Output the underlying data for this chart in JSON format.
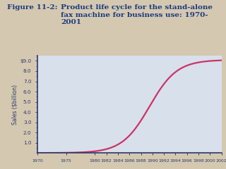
{
  "title_label": "Figure 11-2:",
  "title_text": "   Product life cycle for the stand-alone\n   fax machine for business use: 1970-\n   2001",
  "ylabel": "Sales ($billion)",
  "xlim": [
    1970,
    2002
  ],
  "ylim": [
    0,
    9.5
  ],
  "ytick_values": [
    1.0,
    2.0,
    3.0,
    4.0,
    5.0,
    6.0,
    7.0,
    8.0,
    9.0
  ],
  "ytick_labels": [
    "1.0",
    "2.0",
    "3.0",
    "4.0",
    "5.0",
    "6.0",
    "7.0",
    "8.0",
    "$9.0"
  ],
  "xticks": [
    1970,
    1975,
    1980,
    1982,
    1984,
    1986,
    1988,
    1990,
    1992,
    1994,
    1996,
    1998,
    2000,
    2002
  ],
  "line_color": "#cc3366",
  "line_width": 1.6,
  "plot_bg_color": "#d8e0ec",
  "outer_bg": "#d4c8b0",
  "title_color": "#1a3a80",
  "axis_color": "#2a3a6a",
  "tick_color": "#2a3a6a",
  "sigmoid_L": 9.1,
  "sigmoid_k": 0.42,
  "sigmoid_x0": 1989.5
}
